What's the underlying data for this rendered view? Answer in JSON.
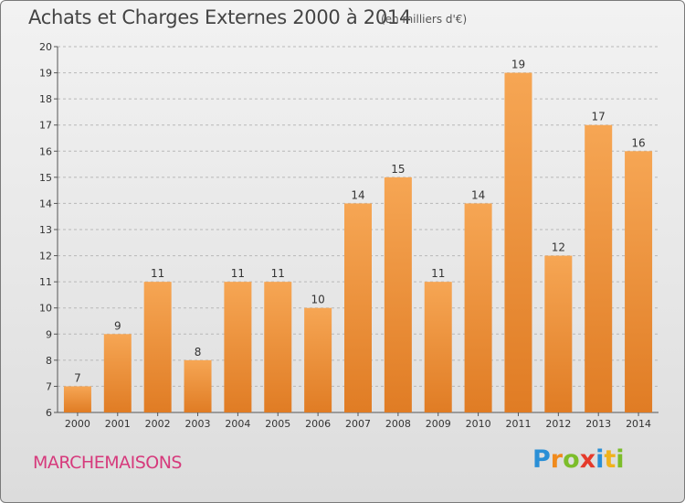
{
  "header": {
    "title": "Achats et Charges Externes 2000 à 2014",
    "subtitle": "(en milliers d'€)"
  },
  "footer": {
    "place": "MARCHEMAISONS",
    "logo_letters": [
      "P",
      "r",
      "o",
      "x",
      "i",
      "t",
      "i"
    ],
    "logo_colors": [
      "#2a8fd6",
      "#f08a1c",
      "#7cbd2a",
      "#e53a2b",
      "#2a8fd6",
      "#f0b21c",
      "#7cbd2a"
    ]
  },
  "colors": {
    "bar_light": "#f6a654",
    "bar_dark": "#e07c24",
    "axis": "#555555",
    "grid": "#b8b8b8"
  },
  "chart_data": {
    "type": "bar",
    "title": "Achats et Charges Externes 2000 à 2014",
    "subtitle": "(en milliers d'€)",
    "categories": [
      "2000",
      "2001",
      "2002",
      "2003",
      "2004",
      "2005",
      "2006",
      "2007",
      "2008",
      "2009",
      "2010",
      "2011",
      "2012",
      "2013",
      "2014"
    ],
    "values": [
      7,
      9,
      11,
      8,
      11,
      11,
      10,
      14,
      15,
      11,
      14,
      19,
      12,
      17,
      16
    ],
    "ylim": [
      6,
      20
    ],
    "yticks": [
      6,
      7,
      8,
      9,
      10,
      11,
      12,
      13,
      14,
      15,
      16,
      17,
      18,
      19,
      20
    ],
    "grid": true
  }
}
